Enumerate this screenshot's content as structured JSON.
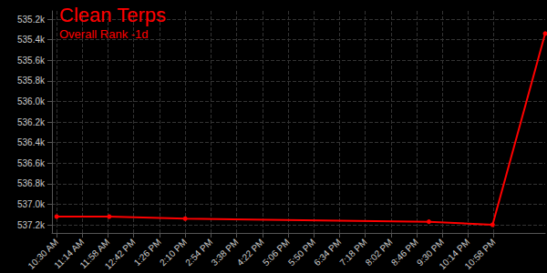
{
  "chart_data": {
    "type": "line",
    "title": "Clean Terps",
    "subtitle": "Overall Rank -1d",
    "x": [
      630,
      720,
      850,
      1267,
      1376,
      1466
    ],
    "values": [
      537120,
      537120,
      537140,
      537170,
      537200,
      535340
    ],
    "color": "#ff0000",
    "marker": "circle",
    "line_style": "solid",
    "grid": true,
    "xlim": [
      622,
      1466
    ],
    "xticks": [
      {
        "value": 630,
        "label": "10:30 AM"
      },
      {
        "value": 674,
        "label": "11:14 AM"
      },
      {
        "value": 718,
        "label": "11:58 AM"
      },
      {
        "value": 762,
        "label": "12:42 PM"
      },
      {
        "value": 806,
        "label": "1:26 PM"
      },
      {
        "value": 850,
        "label": "2:10 PM"
      },
      {
        "value": 894,
        "label": "2:54 PM"
      },
      {
        "value": 938,
        "label": "3:38 PM"
      },
      {
        "value": 982,
        "label": "4:22 PM"
      },
      {
        "value": 1026,
        "label": "5:06 PM"
      },
      {
        "value": 1070,
        "label": "5:50 PM"
      },
      {
        "value": 1114,
        "label": "6:34 PM"
      },
      {
        "value": 1158,
        "label": "7:18 PM"
      },
      {
        "value": 1202,
        "label": "8:02 PM"
      },
      {
        "value": 1246,
        "label": "8:46 PM"
      },
      {
        "value": 1290,
        "label": "9:30 PM"
      },
      {
        "value": 1334,
        "label": "10:14 PM"
      },
      {
        "value": 1378,
        "label": "10:58 PM"
      }
    ],
    "ylim": [
      537280,
      535120
    ],
    "yticks": [
      {
        "value": 535200,
        "label": "535.2k"
      },
      {
        "value": 535400,
        "label": "535.4k"
      },
      {
        "value": 535600,
        "label": "535.6k"
      },
      {
        "value": 535800,
        "label": "535.8k"
      },
      {
        "value": 536000,
        "label": "536.0k"
      },
      {
        "value": 536200,
        "label": "536.2k"
      },
      {
        "value": 536400,
        "label": "536.4k"
      },
      {
        "value": 536600,
        "label": "536.6k"
      },
      {
        "value": 536800,
        "label": "536.8k"
      },
      {
        "value": 537000,
        "label": "537.0k"
      },
      {
        "value": 537200,
        "label": "537.2k"
      }
    ]
  }
}
